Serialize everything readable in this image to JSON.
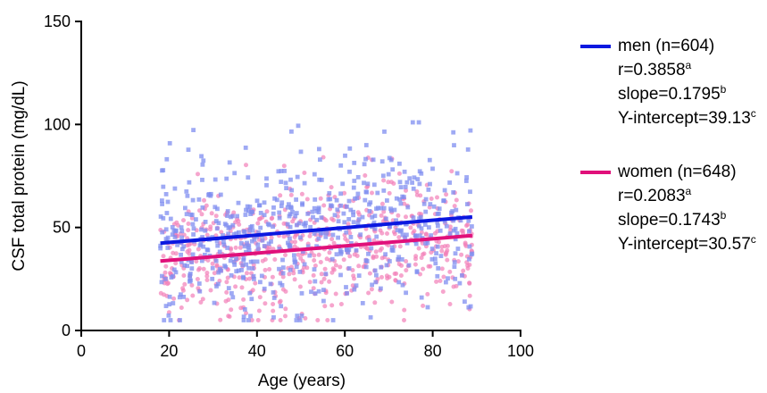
{
  "chart_data": {
    "type": "scatter",
    "xlabel": "Age (years)",
    "ylabel": "CSF total protein (mg/dL)",
    "xlim": [
      0,
      100
    ],
    "ylim": [
      0,
      150
    ],
    "xticks": [
      "0",
      "20",
      "40",
      "60",
      "80",
      "100"
    ],
    "yticks": [
      "0",
      "50",
      "100",
      "150"
    ],
    "grid": false,
    "legend_position": "right",
    "series": [
      {
        "name": "men (n=604)",
        "color": "#0b18e0",
        "point_color": "#7f8ef0",
        "marker": "square",
        "n": 604,
        "x_range": [
          18,
          89
        ],
        "fit_line": {
          "x": [
            18,
            89
          ],
          "y": [
            42.36,
            55.11
          ]
        },
        "stats": [
          {
            "text": "r=0.3858",
            "sup": "a"
          },
          {
            "text": "slope=0.1795",
            "sup": "b"
          },
          {
            "text": "Y-intercept=39.13",
            "sup": "c"
          }
        ]
      },
      {
        "name": "women (n=648)",
        "color": "#e0107a",
        "point_color": "#f27fb8",
        "marker": "circle",
        "n": 648,
        "x_range": [
          18,
          89
        ],
        "fit_line": {
          "x": [
            18,
            89
          ],
          "y": [
            33.71,
            46.08
          ]
        },
        "stats": [
          {
            "text": "r=0.2083",
            "sup": "a"
          },
          {
            "text": "slope=0.1743",
            "sup": "b"
          },
          {
            "text": "Y-intercept=30.57",
            "sup": "c"
          }
        ]
      }
    ]
  }
}
